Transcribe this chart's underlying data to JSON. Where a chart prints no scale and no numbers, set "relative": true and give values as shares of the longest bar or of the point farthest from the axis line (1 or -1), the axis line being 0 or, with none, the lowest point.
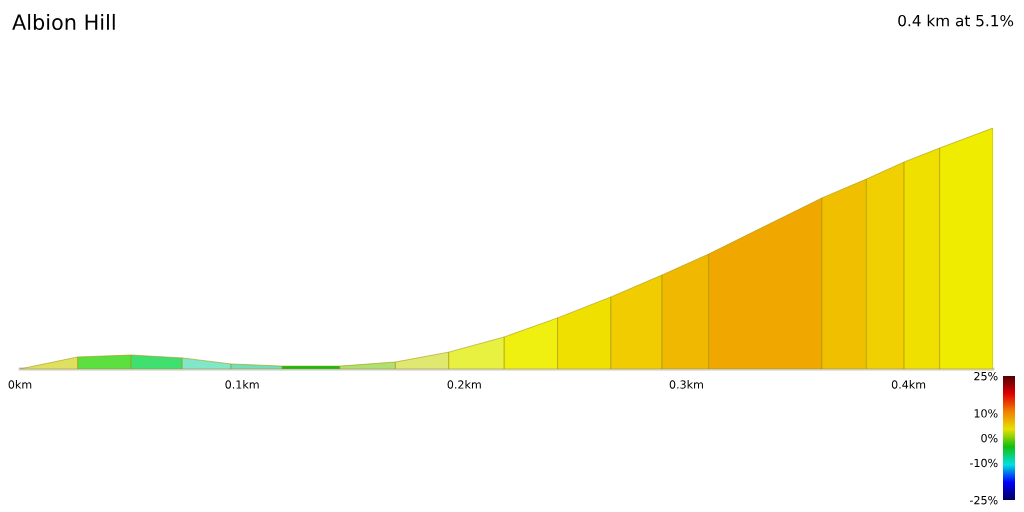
{
  "chart_data": {
    "type": "area",
    "title": "Albion Hill",
    "subtitle": "0.4 km at 5.1%",
    "relative": true,
    "series": [
      {
        "color": "#e0e060",
        "x": [
          0,
          0.026
        ],
        "values": [
          0,
          0.05
        ]
      },
      {
        "color": "#5ce040",
        "x": [
          0.026,
          0.05
        ],
        "values": [
          0.05,
          0.058
        ]
      },
      {
        "color": "#40e070",
        "x": [
          0.05,
          0.073
        ],
        "values": [
          0.058,
          0.046
        ]
      },
      {
        "color": "#80e8c8",
        "x": [
          0.073,
          0.095
        ],
        "values": [
          0.046,
          0.021
        ]
      },
      {
        "color": "#70e0b8",
        "x": [
          0.095,
          0.118
        ],
        "values": [
          0.021,
          0.012
        ]
      },
      {
        "color": "#10c010",
        "x": [
          0.118,
          0.144
        ],
        "values": [
          0.012,
          0.012
        ]
      },
      {
        "color": "#b0e070",
        "x": [
          0.144,
          0.169
        ],
        "values": [
          0.012,
          0.029
        ]
      },
      {
        "color": "#e0e870",
        "x": [
          0.169,
          0.193
        ],
        "values": [
          0.029,
          0.07
        ]
      },
      {
        "color": "#e8f040",
        "x": [
          0.193,
          0.218
        ],
        "values": [
          0.07,
          0.133
        ]
      },
      {
        "color": "#f0f010",
        "x": [
          0.218,
          0.242
        ],
        "values": [
          0.133,
          0.212
        ]
      },
      {
        "color": "#f0e000",
        "x": [
          0.242,
          0.266
        ],
        "values": [
          0.212,
          0.299
        ]
      },
      {
        "color": "#f0cc00",
        "x": [
          0.266,
          0.289
        ],
        "values": [
          0.299,
          0.39
        ]
      },
      {
        "color": "#f0b800",
        "x": [
          0.289,
          0.31
        ],
        "values": [
          0.39,
          0.477
        ]
      },
      {
        "color": "#f0a800",
        "x": [
          0.31,
          0.361
        ],
        "values": [
          0.477,
          0.71
        ]
      },
      {
        "color": "#f0c000",
        "x": [
          0.361,
          0.381
        ],
        "values": [
          0.71,
          0.788
        ]
      },
      {
        "color": "#f0d000",
        "x": [
          0.381,
          0.398
        ],
        "values": [
          0.788,
          0.859
        ]
      },
      {
        "color": "#f0e000",
        "x": [
          0.398,
          0.414
        ],
        "values": [
          0.859,
          0.917
        ]
      },
      {
        "color": "#f0ec00",
        "x": [
          0.414,
          0.438
        ],
        "values": [
          0.917,
          1
        ]
      }
    ],
    "xlim": [
      0,
      0.438
    ],
    "xticks": [
      {
        "value": 0,
        "label": "0km"
      },
      {
        "value": 0.1,
        "label": "0.1km"
      },
      {
        "value": 0.2,
        "label": "0.2km"
      },
      {
        "value": 0.3,
        "label": "0.3km"
      },
      {
        "value": 0.4,
        "label": "0.4km"
      }
    ],
    "clim": [
      -25,
      25
    ],
    "cticks": [
      {
        "value": 25,
        "label": "25%"
      },
      {
        "value": 10,
        "label": "10%"
      },
      {
        "value": 0,
        "label": "0%"
      },
      {
        "value": -10,
        "label": "-10%"
      },
      {
        "value": -25,
        "label": "-25%"
      }
    ],
    "grid": false,
    "legend": false
  }
}
